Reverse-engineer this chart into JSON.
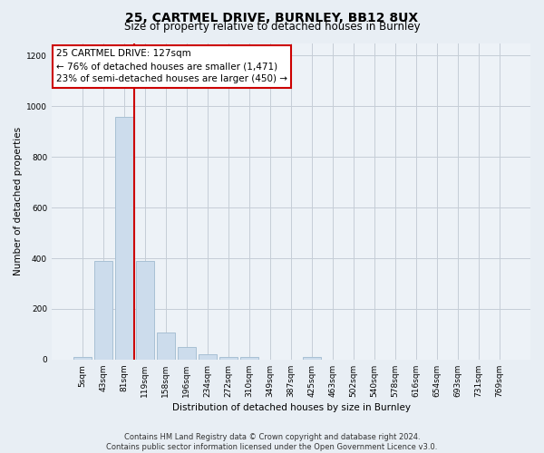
{
  "title1": "25, CARTMEL DRIVE, BURNLEY, BB12 8UX",
  "title2": "Size of property relative to detached houses in Burnley",
  "xlabel": "Distribution of detached houses by size in Burnley",
  "ylabel": "Number of detached properties",
  "footnote": "Contains HM Land Registry data © Crown copyright and database right 2024.\nContains public sector information licensed under the Open Government Licence v3.0.",
  "bar_labels": [
    "5sqm",
    "43sqm",
    "81sqm",
    "119sqm",
    "158sqm",
    "196sqm",
    "234sqm",
    "272sqm",
    "310sqm",
    "349sqm",
    "387sqm",
    "425sqm",
    "463sqm",
    "502sqm",
    "540sqm",
    "578sqm",
    "616sqm",
    "654sqm",
    "693sqm",
    "731sqm",
    "769sqm"
  ],
  "bar_values": [
    10,
    390,
    960,
    390,
    105,
    50,
    20,
    10,
    10,
    0,
    0,
    10,
    0,
    0,
    0,
    0,
    0,
    0,
    0,
    0,
    0
  ],
  "bar_color": "#ccdcec",
  "bar_edge_color": "#a8c0d4",
  "vline_x": 2.5,
  "vline_color": "#cc0000",
  "annotation_text": "25 CARTMEL DRIVE: 127sqm\n← 76% of detached houses are smaller (1,471)\n23% of semi-detached houses are larger (450) →",
  "annotation_box_color": "#ffffff",
  "annotation_box_edge": "#cc0000",
  "ylim": [
    0,
    1250
  ],
  "yticks": [
    0,
    200,
    400,
    600,
    800,
    1000,
    1200
  ],
  "bg_color": "#e8eef4",
  "plot_bg_color": "#edf2f7",
  "grid_color": "#c5cdd6",
  "title1_fontsize": 10,
  "title2_fontsize": 8.5,
  "xlabel_fontsize": 7.5,
  "ylabel_fontsize": 7.5,
  "footnote_fontsize": 6,
  "tick_fontsize": 6.5,
  "annot_fontsize": 7.5
}
